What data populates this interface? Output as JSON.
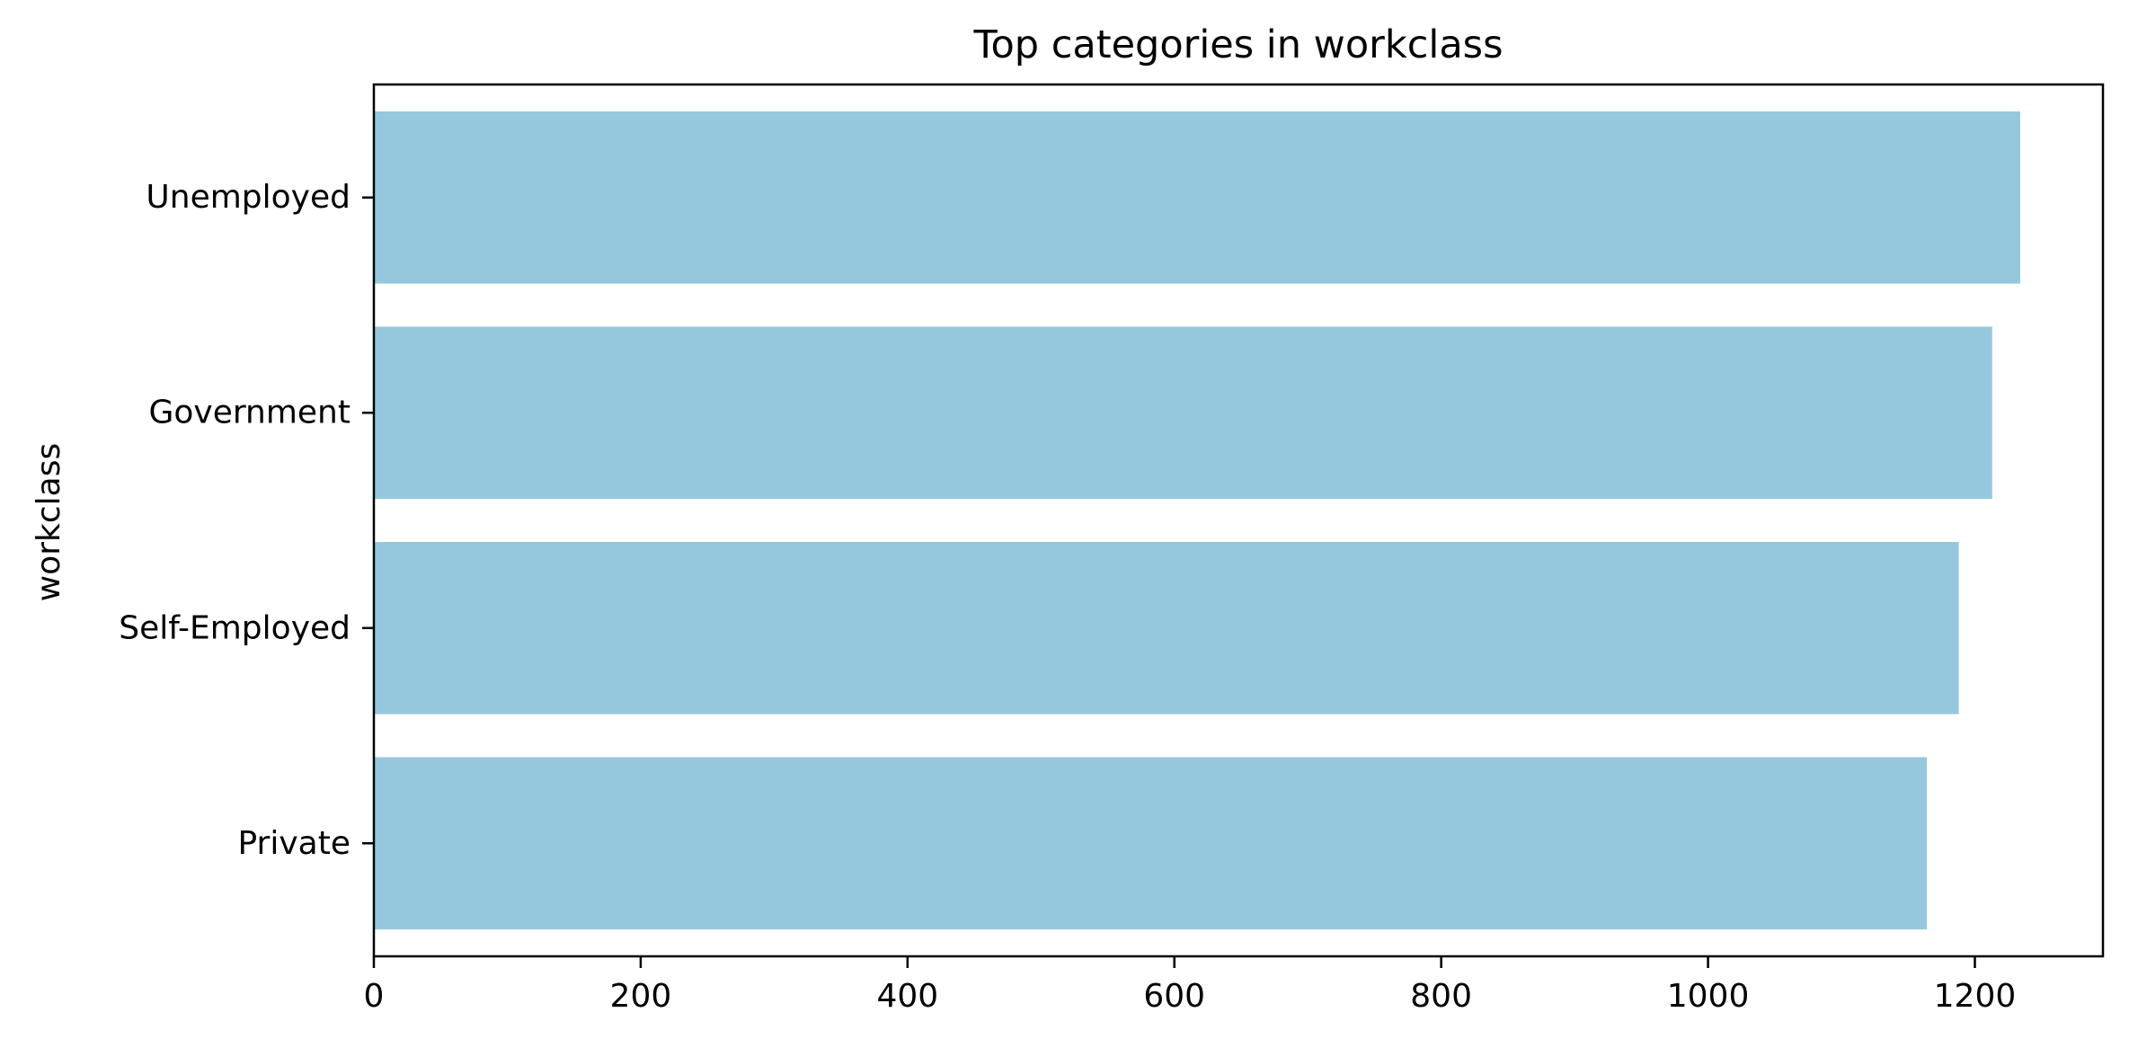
{
  "chart_data": {
    "type": "bar",
    "orientation": "horizontal",
    "title": "Top categories in workclass",
    "xlabel": "",
    "ylabel": "workclass",
    "categories": [
      "Unemployed",
      "Government",
      "Self-Employed",
      "Private"
    ],
    "values": [
      1234,
      1213,
      1188,
      1164
    ],
    "xlim": [
      0,
      1296
    ],
    "xticks": [
      0,
      200,
      400,
      600,
      800,
      1000,
      1200
    ],
    "bar_color": "#95c8dd",
    "grid": false,
    "legend": "none"
  }
}
